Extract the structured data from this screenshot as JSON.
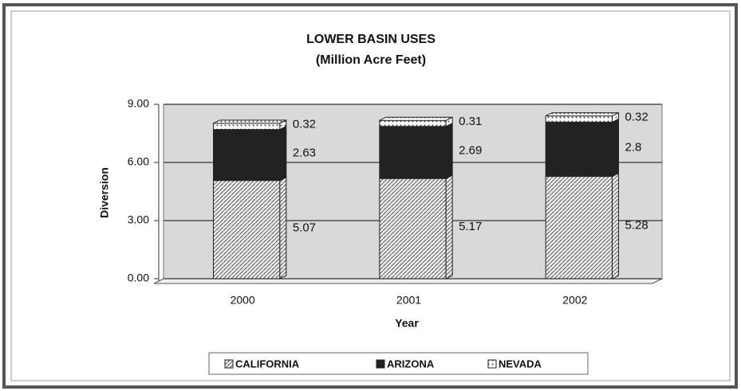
{
  "chart_data": {
    "type": "stacked_bar",
    "title": "LOWER BASIN USES",
    "subtitle": "(Million  Acre Feet)",
    "x_label": "Year",
    "y_label": "Diversion",
    "categories": [
      "2000",
      "2001",
      "2002"
    ],
    "series": [
      {
        "name": "CALIFORNIA",
        "color": "#555555",
        "pattern": "hatch",
        "values": [
          5.07,
          5.17,
          5.28
        ]
      },
      {
        "name": "ARIZONA",
        "color": "#222222",
        "pattern": "solid",
        "values": [
          2.63,
          2.69,
          2.8
        ]
      },
      {
        "name": "NEVADA",
        "color": "#444444",
        "pattern": "dots",
        "values": [
          0.32,
          0.31,
          0.32
        ]
      }
    ],
    "ylim": [
      0,
      9
    ],
    "yticks": [
      {
        "value": 0,
        "label": "0.00"
      },
      {
        "value": 3,
        "label": "3.00"
      },
      {
        "value": 6,
        "label": "6.00"
      },
      {
        "value": 9,
        "label": "9.00"
      }
    ],
    "grid": true,
    "legend": "bottom"
  }
}
